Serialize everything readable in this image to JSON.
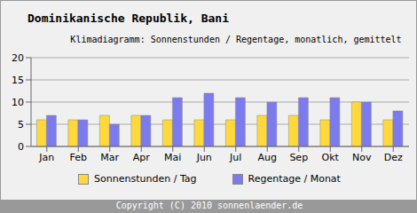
{
  "chart_data": {
    "type": "bar",
    "title": "Dominikanische Republik, Bani",
    "subtitle": "Klimadiagramm: Sonnenstunden / Regentage, monatlich, gemittelt",
    "annotations": [
      "Copyright (C) 2010 sonnenlaender.de"
    ],
    "categories": [
      "Jan",
      "Feb",
      "Mar",
      "Apr",
      "Mai",
      "Jun",
      "Jul",
      "Aug",
      "Sep",
      "Okt",
      "Nov",
      "Dez"
    ],
    "series": [
      {
        "name": "Sonnenstunden / Tag",
        "color": "#ffd83c",
        "values": [
          6,
          6,
          7,
          7,
          6,
          6,
          6,
          7,
          7,
          6,
          10,
          6
        ]
      },
      {
        "name": "Regentage / Monat",
        "color": "#7b7bee",
        "values": [
          7,
          6,
          5,
          7,
          11,
          12,
          11,
          10,
          11,
          11,
          10,
          8
        ]
      }
    ],
    "ylim": [
      0,
      20
    ],
    "yticks": [
      0,
      5,
      10,
      15,
      20
    ],
    "grid": true,
    "legend": "bottom"
  }
}
